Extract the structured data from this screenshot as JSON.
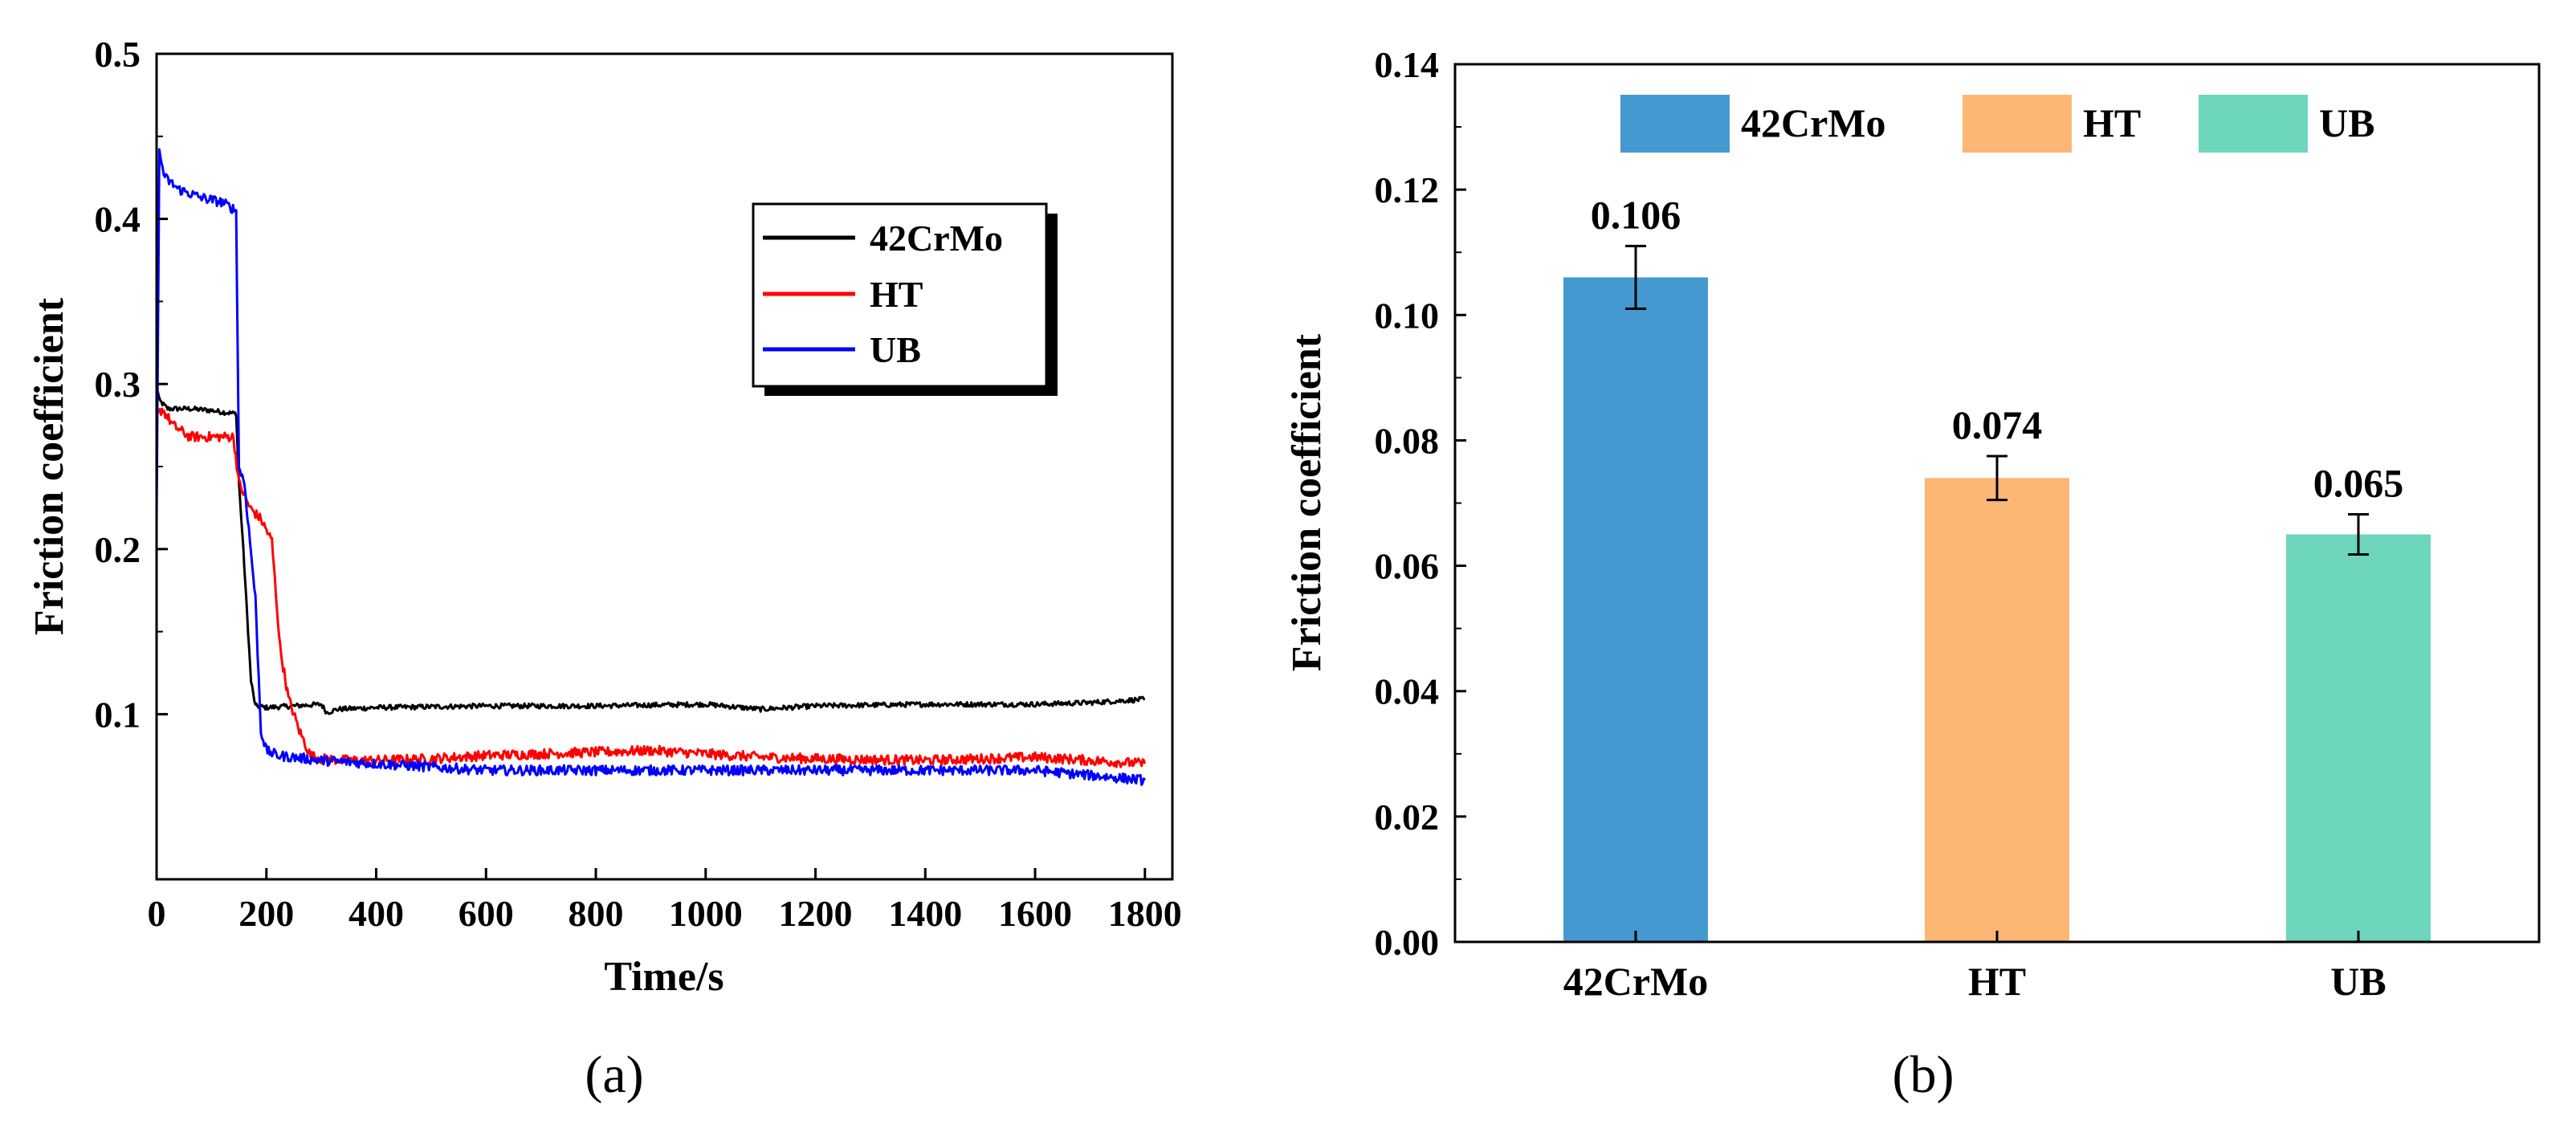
{
  "panels": {
    "a_label": "(a)",
    "b_label": "(b)"
  },
  "chart_data": [
    {
      "id": "a",
      "type": "line",
      "title": "",
      "xlabel": "Time/s",
      "ylabel": "Friction coefficient",
      "xlim": [
        0,
        1850
      ],
      "ylim": [
        0,
        0.5
      ],
      "xticks": [
        0,
        200,
        400,
        600,
        800,
        1000,
        1200,
        1400,
        1600,
        1800
      ],
      "yticks": [
        0.1,
        0.2,
        0.3,
        0.4,
        0.5
      ],
      "ytick_labels": [
        "0.1",
        "0.2",
        "0.3",
        "0.4",
        "0.5"
      ],
      "legend_position": "upper-right",
      "series": [
        {
          "name": "42CrMo",
          "color": "#000000",
          "noise": 0.0015,
          "x": [
            0,
            5,
            20,
            60,
            100,
            120,
            145,
            150,
            158,
            165,
            172,
            180,
            200,
            250,
            300,
            310,
            330,
            400,
            600,
            800,
            1000,
            1100,
            1200,
            1400,
            1600,
            1700,
            1800
          ],
          "y": [
            0.3,
            0.29,
            0.285,
            0.285,
            0.284,
            0.283,
            0.282,
            0.24,
            0.2,
            0.16,
            0.12,
            0.105,
            0.104,
            0.105,
            0.106,
            0.101,
            0.103,
            0.104,
            0.105,
            0.105,
            0.106,
            0.103,
            0.105,
            0.106,
            0.106,
            0.107,
            0.109
          ]
        },
        {
          "name": "HT",
          "color": "#ff0000",
          "noise": 0.003,
          "x": [
            0,
            10,
            30,
            60,
            100,
            140,
            150,
            170,
            190,
            210,
            225,
            240,
            260,
            280,
            300,
            350,
            400,
            500,
            600,
            700,
            800,
            900,
            1000,
            1100,
            1200,
            1400,
            1600,
            1700,
            1800
          ],
          "y": [
            0.28,
            0.285,
            0.275,
            0.268,
            0.268,
            0.268,
            0.24,
            0.225,
            0.218,
            0.205,
            0.14,
            0.11,
            0.09,
            0.075,
            0.073,
            0.072,
            0.072,
            0.073,
            0.075,
            0.076,
            0.077,
            0.078,
            0.076,
            0.074,
            0.073,
            0.072,
            0.074,
            0.072,
            0.07
          ]
        },
        {
          "name": "UB",
          "color": "#0000ff",
          "noise": 0.003,
          "x": [
            0,
            5,
            15,
            40,
            80,
            120,
            145,
            150,
            160,
            180,
            190,
            200,
            220,
            300,
            400,
            500,
            600,
            800,
            1000,
            1200,
            1400,
            1600,
            1700,
            1800
          ],
          "y": [
            0.22,
            0.44,
            0.425,
            0.418,
            0.413,
            0.41,
            0.405,
            0.25,
            0.24,
            0.17,
            0.09,
            0.078,
            0.075,
            0.072,
            0.07,
            0.068,
            0.066,
            0.066,
            0.066,
            0.066,
            0.066,
            0.066,
            0.063,
            0.06
          ]
        }
      ]
    },
    {
      "id": "b",
      "type": "bar",
      "title": "",
      "xlabel": "",
      "ylabel": "Friction coefficient",
      "categories": [
        "42CrMo",
        "HT",
        "UB"
      ],
      "values": [
        0.106,
        0.074,
        0.065
      ],
      "value_labels": [
        "0.106",
        "0.074",
        "0.065"
      ],
      "errors": [
        0.005,
        0.0035,
        0.0032
      ],
      "colors": [
        "#4499d0",
        "#fcb774",
        "#6dd6bd"
      ],
      "ylim": [
        0,
        0.14
      ],
      "yticks": [
        0,
        0.02,
        0.04,
        0.06,
        0.08,
        0.1,
        0.12,
        0.14
      ],
      "ytick_labels": [
        "0.00",
        "0.02",
        "0.04",
        "0.06",
        "0.08",
        "0.10",
        "0.12",
        "0.14"
      ],
      "legend": [
        "42CrMo",
        "HT",
        "UB"
      ],
      "legend_position": "top"
    }
  ]
}
